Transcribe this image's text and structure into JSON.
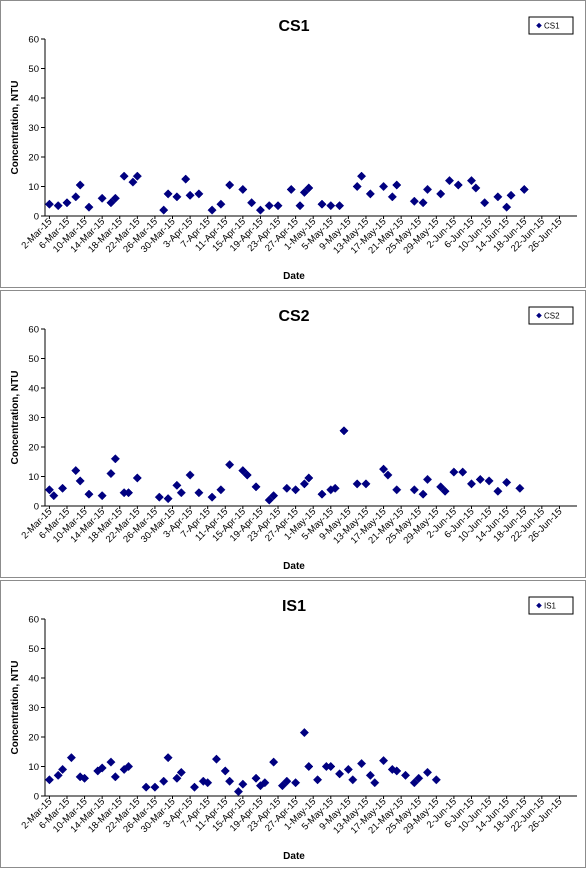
{
  "chart_data": [
    {
      "type": "scatter",
      "title": "CS1",
      "xlabel": "Date",
      "ylabel": "Concentration, NTU",
      "ylim": [
        0,
        60
      ],
      "yticks": [
        "0",
        "10",
        "20",
        "30",
        "40",
        "50",
        "60"
      ],
      "grid": false,
      "legend": "top-right",
      "marker_color": "#000080",
      "xticklabels": [
        "2-Mar-15",
        "6-Mar-15",
        "10-Mar-15",
        "14-Mar-15",
        "18-Mar-15",
        "22-Mar-15",
        "26-Mar-15",
        "30-Mar-15",
        "3-Apr-15",
        "7-Apr-15",
        "11-Apr-15",
        "15-Apr-15",
        "19-Apr-15",
        "23-Apr-15",
        "27-Apr-15",
        "1-May-15",
        "5-May-15",
        "9-May-15",
        "13-May-15",
        "17-May-15",
        "21-May-15",
        "25-May-15",
        "29-May-15",
        "2-Jun-15",
        "6-Jun-15",
        "10-Jun-15",
        "14-Jun-15",
        "18-Jun-15",
        "22-Jun-15",
        "26-Jun-15"
      ],
      "series": [
        {
          "name": "CS1",
          "points": [
            [
              "2015-03-02",
              4
            ],
            [
              "2015-03-04",
              3.5
            ],
            [
              "2015-03-06",
              4.5
            ],
            [
              "2015-03-08",
              6.5
            ],
            [
              "2015-03-09",
              10.5
            ],
            [
              "2015-03-11",
              3
            ],
            [
              "2015-03-14",
              6
            ],
            [
              "2015-03-16",
              4.5
            ],
            [
              "2015-03-17",
              6
            ],
            [
              "2015-03-19",
              13.5
            ],
            [
              "2015-03-21",
              11.5
            ],
            [
              "2015-03-22",
              13.5
            ],
            [
              "2015-03-28",
              2
            ],
            [
              "2015-03-29",
              7.5
            ],
            [
              "2015-03-31",
              6.5
            ],
            [
              "2015-04-02",
              12.5
            ],
            [
              "2015-04-03",
              7
            ],
            [
              "2015-04-05",
              7.5
            ],
            [
              "2015-04-08",
              2
            ],
            [
              "2015-04-10",
              4
            ],
            [
              "2015-04-12",
              10.5
            ],
            [
              "2015-04-15",
              9
            ],
            [
              "2015-04-17",
              4.5
            ],
            [
              "2015-04-19",
              2
            ],
            [
              "2015-04-21",
              3.5
            ],
            [
              "2015-04-23",
              3.5
            ],
            [
              "2015-04-26",
              9
            ],
            [
              "2015-04-28",
              3.5
            ],
            [
              "2015-04-29",
              8
            ],
            [
              "2015-04-30",
              9.5
            ],
            [
              "2015-05-03",
              4
            ],
            [
              "2015-05-05",
              3.5
            ],
            [
              "2015-05-07",
              3.5
            ],
            [
              "2015-05-11",
              10
            ],
            [
              "2015-05-12",
              13.5
            ],
            [
              "2015-05-14",
              7.5
            ],
            [
              "2015-05-17",
              10
            ],
            [
              "2015-05-19",
              6.5
            ],
            [
              "2015-05-20",
              10.5
            ],
            [
              "2015-05-24",
              5
            ],
            [
              "2015-05-26",
              4.5
            ],
            [
              "2015-05-27",
              9
            ],
            [
              "2015-05-30",
              7.5
            ],
            [
              "2015-06-01",
              12
            ],
            [
              "2015-06-03",
              10.5
            ],
            [
              "2015-06-06",
              12
            ],
            [
              "2015-06-07",
              9.5
            ],
            [
              "2015-06-09",
              4.5
            ],
            [
              "2015-06-12",
              6.5
            ],
            [
              "2015-06-14",
              3
            ],
            [
              "2015-06-15",
              7
            ],
            [
              "2015-06-18",
              9
            ]
          ]
        }
      ]
    },
    {
      "type": "scatter",
      "title": "CS2",
      "xlabel": "Date",
      "ylabel": "Concentration, NTU",
      "ylim": [
        0,
        60
      ],
      "yticks": [
        "0",
        "10",
        "20",
        "30",
        "40",
        "50",
        "60"
      ],
      "grid": false,
      "legend": "top-right",
      "marker_color": "#000080",
      "xticklabels": [
        "2-Mar-15",
        "6-Mar-15",
        "10-Mar-15",
        "14-Mar-15",
        "18-Mar-15",
        "22-Mar-15",
        "26-Mar-15",
        "30-Mar-15",
        "3-Apr-15",
        "7-Apr-15",
        "11-Apr-15",
        "15-Apr-15",
        "19-Apr-15",
        "23-Apr-15",
        "27-Apr-15",
        "1-May-15",
        "5-May-15",
        "9-May-15",
        "13-May-15",
        "17-May-15",
        "21-May-15",
        "25-May-15",
        "29-May-15",
        "2-Jun-15",
        "6-Jun-15",
        "10-Jun-15",
        "14-Jun-15",
        "18-Jun-15",
        "22-Jun-15",
        "26-Jun-15"
      ],
      "series": [
        {
          "name": "CS2",
          "points": [
            [
              "2015-03-02",
              5.5
            ],
            [
              "2015-03-03",
              3.5
            ],
            [
              "2015-03-05",
              6
            ],
            [
              "2015-03-08",
              12
            ],
            [
              "2015-03-09",
              8.5
            ],
            [
              "2015-03-11",
              4
            ],
            [
              "2015-03-14",
              3.5
            ],
            [
              "2015-03-16",
              11
            ],
            [
              "2015-03-17",
              16
            ],
            [
              "2015-03-19",
              4.5
            ],
            [
              "2015-03-20",
              4.5
            ],
            [
              "2015-03-22",
              9.5
            ],
            [
              "2015-03-27",
              3
            ],
            [
              "2015-03-29",
              2.5
            ],
            [
              "2015-03-31",
              7
            ],
            [
              "2015-04-01",
              4.5
            ],
            [
              "2015-04-03",
              10.5
            ],
            [
              "2015-04-05",
              4.5
            ],
            [
              "2015-04-08",
              3
            ],
            [
              "2015-04-10",
              5.5
            ],
            [
              "2015-04-12",
              14
            ],
            [
              "2015-04-15",
              12
            ],
            [
              "2015-04-16",
              10.5
            ],
            [
              "2015-04-18",
              6.5
            ],
            [
              "2015-04-21",
              2
            ],
            [
              "2015-04-22",
              3.5
            ],
            [
              "2015-04-25",
              6
            ],
            [
              "2015-04-27",
              5.5
            ],
            [
              "2015-04-29",
              7.5
            ],
            [
              "2015-04-30",
              9.5
            ],
            [
              "2015-05-03",
              4
            ],
            [
              "2015-05-05",
              5.5
            ],
            [
              "2015-05-06",
              6
            ],
            [
              "2015-05-08",
              25.5
            ],
            [
              "2015-05-11",
              7.5
            ],
            [
              "2015-05-13",
              7.5
            ],
            [
              "2015-05-17",
              12.5
            ],
            [
              "2015-05-18",
              10.5
            ],
            [
              "2015-05-20",
              5.5
            ],
            [
              "2015-05-24",
              5.5
            ],
            [
              "2015-05-26",
              4
            ],
            [
              "2015-05-27",
              9
            ],
            [
              "2015-05-30",
              6.5
            ],
            [
              "2015-05-31",
              5
            ],
            [
              "2015-06-02",
              11.5
            ],
            [
              "2015-06-04",
              11.5
            ],
            [
              "2015-06-06",
              7.5
            ],
            [
              "2015-06-08",
              9
            ],
            [
              "2015-06-10",
              8.5
            ],
            [
              "2015-06-12",
              5
            ],
            [
              "2015-06-14",
              8
            ],
            [
              "2015-06-17",
              6
            ]
          ]
        }
      ]
    },
    {
      "type": "scatter",
      "title": "IS1",
      "xlabel": "Date",
      "ylabel": "Concentration, NTU",
      "ylim": [
        0,
        60
      ],
      "yticks": [
        "0",
        "10",
        "20",
        "30",
        "40",
        "50",
        "60"
      ],
      "grid": false,
      "legend": "top-right",
      "marker_color": "#000080",
      "xticklabels": [
        "2-Mar-15",
        "6-Mar-15",
        "10-Mar-15",
        "14-Mar-15",
        "18-Mar-15",
        "22-Mar-15",
        "26-Mar-15",
        "30-Mar-15",
        "3-Apr-15",
        "7-Apr-15",
        "11-Apr-15",
        "15-Apr-15",
        "19-Apr-15",
        "23-Apr-15",
        "27-Apr-15",
        "1-May-15",
        "5-May-15",
        "9-May-15",
        "13-May-15",
        "17-May-15",
        "21-May-15",
        "25-May-15",
        "29-May-15",
        "2-Jun-15",
        "6-Jun-15",
        "10-Jun-15",
        "14-Jun-15",
        "18-Jun-15",
        "22-Jun-15",
        "26-Jun-15"
      ],
      "series": [
        {
          "name": "IS1",
          "points": [
            [
              "2015-03-02",
              5.5
            ],
            [
              "2015-03-04",
              7
            ],
            [
              "2015-03-05",
              9
            ],
            [
              "2015-03-07",
              13
            ],
            [
              "2015-03-09",
              6.5
            ],
            [
              "2015-03-10",
              6
            ],
            [
              "2015-03-13",
              8.5
            ],
            [
              "2015-03-14",
              9.5
            ],
            [
              "2015-03-16",
              11.5
            ],
            [
              "2015-03-17",
              6.5
            ],
            [
              "2015-03-19",
              9
            ],
            [
              "2015-03-20",
              10
            ],
            [
              "2015-03-24",
              3
            ],
            [
              "2015-03-26",
              3
            ],
            [
              "2015-03-28",
              5
            ],
            [
              "2015-03-29",
              13
            ],
            [
              "2015-03-31",
              6
            ],
            [
              "2015-04-01",
              8
            ],
            [
              "2015-04-04",
              3
            ],
            [
              "2015-04-06",
              5
            ],
            [
              "2015-04-07",
              4.5
            ],
            [
              "2015-04-09",
              12.5
            ],
            [
              "2015-04-11",
              8.5
            ],
            [
              "2015-04-12",
              5
            ],
            [
              "2015-04-14",
              1.5
            ],
            [
              "2015-04-15",
              4
            ],
            [
              "2015-04-18",
              6
            ],
            [
              "2015-04-19",
              3.5
            ],
            [
              "2015-04-20",
              4.5
            ],
            [
              "2015-04-22",
              11.5
            ],
            [
              "2015-04-24",
              3.5
            ],
            [
              "2015-04-25",
              5
            ],
            [
              "2015-04-27",
              4.5
            ],
            [
              "2015-04-29",
              21.5
            ],
            [
              "2015-04-30",
              10
            ],
            [
              "2015-05-02",
              5.5
            ],
            [
              "2015-05-04",
              10
            ],
            [
              "2015-05-05",
              10
            ],
            [
              "2015-05-07",
              7.5
            ],
            [
              "2015-05-09",
              9
            ],
            [
              "2015-05-10",
              5.5
            ],
            [
              "2015-05-12",
              11
            ],
            [
              "2015-05-14",
              7
            ],
            [
              "2015-05-15",
              4.5
            ],
            [
              "2015-05-17",
              12
            ],
            [
              "2015-05-19",
              9
            ],
            [
              "2015-05-20",
              8.5
            ],
            [
              "2015-05-22",
              7
            ],
            [
              "2015-05-24",
              4.5
            ],
            [
              "2015-05-25",
              6
            ],
            [
              "2015-05-27",
              8
            ],
            [
              "2015-05-29",
              5.5
            ]
          ]
        }
      ]
    }
  ]
}
